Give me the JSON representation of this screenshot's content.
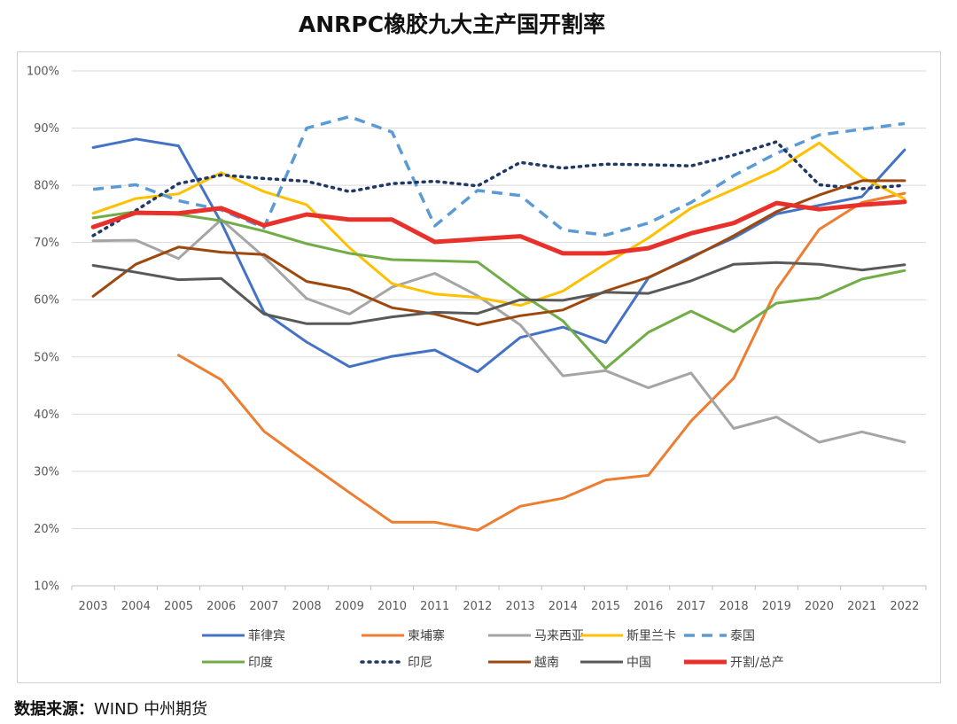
{
  "chart_data": {
    "type": "line",
    "title": "ANRPC橡胶九大主产国开割率",
    "xlabel": "",
    "ylabel": "",
    "x": [
      "2003",
      "2004",
      "2005",
      "2006",
      "2007",
      "2008",
      "2009",
      "2010",
      "2011",
      "2012",
      "2013",
      "2014",
      "2015",
      "2016",
      "2017",
      "2018",
      "2019",
      "2020",
      "2021",
      "2022"
    ],
    "ylim": [
      10,
      100
    ],
    "yticks": [
      "10%",
      "20%",
      "30%",
      "40%",
      "50%",
      "60%",
      "70%",
      "80%",
      "90%",
      "100%"
    ],
    "ytick_values": [
      10,
      20,
      30,
      40,
      50,
      60,
      70,
      80,
      90,
      100
    ],
    "grid": "horizontal",
    "legend_placement": "bottom",
    "series": [
      {
        "name": "菲律宾",
        "color": "#4472C4",
        "dash": "solid",
        "width": 3,
        "values": [
          86.6,
          88.1,
          86.9,
          73.5,
          57.8,
          52.6,
          48.3,
          50.1,
          51.2,
          47.4,
          53.4,
          55.2,
          52.5,
          63.8,
          67.5,
          70.8,
          75.0,
          76.5,
          78.0,
          86.2
        ]
      },
      {
        "name": "柬埔寨",
        "color": "#ED7D31",
        "dash": "solid",
        "width": 3,
        "values": [
          null,
          null,
          50.3,
          46.0,
          37.0,
          31.6,
          26.3,
          21.1,
          21.1,
          19.7,
          23.9,
          25.3,
          28.5,
          29.3,
          38.8,
          46.3,
          61.8,
          72.3,
          77.0,
          78.6
        ]
      },
      {
        "name": "马来西亚",
        "color": "#A5A5A5",
        "dash": "solid",
        "width": 3,
        "values": [
          70.3,
          70.4,
          67.2,
          74.0,
          67.5,
          60.2,
          57.5,
          62.2,
          64.6,
          60.7,
          55.6,
          46.7,
          47.6,
          44.6,
          47.2,
          37.5,
          39.5,
          35.1,
          36.9,
          35.1
        ]
      },
      {
        "name": "斯里兰卡",
        "color": "#FFC000",
        "dash": "solid",
        "width": 3,
        "values": [
          75.1,
          77.7,
          78.5,
          82.2,
          78.9,
          76.6,
          69.1,
          62.8,
          61.0,
          60.4,
          59.0,
          61.5,
          66.3,
          70.8,
          76.0,
          79.3,
          82.7,
          87.4,
          81.4,
          77.6
        ]
      },
      {
        "name": "泰国",
        "color": "#5B9BD5",
        "dash": "12,8",
        "width": 3.5,
        "values": [
          79.3,
          80.1,
          77.3,
          75.7,
          72.6,
          90.0,
          92.0,
          89.3,
          72.9,
          79.1,
          78.2,
          72.2,
          71.3,
          73.4,
          77.0,
          81.7,
          85.6,
          88.8,
          89.8,
          90.8
        ]
      },
      {
        "name": "印度",
        "color": "#70AD47",
        "dash": "solid",
        "width": 3,
        "values": [
          74.3,
          75.4,
          74.9,
          73.8,
          72.0,
          69.8,
          68.1,
          67.0,
          66.8,
          66.6,
          61.1,
          56.3,
          48.0,
          54.3,
          58.0,
          54.4,
          59.4,
          60.3,
          63.6,
          65.1
        ]
      },
      {
        "name": "印尼",
        "color": "#203864",
        "dash": "2,6",
        "width": 3.5,
        "values": [
          71.2,
          75.6,
          80.3,
          81.8,
          81.2,
          80.7,
          78.9,
          80.3,
          80.7,
          79.9,
          84.0,
          83.0,
          83.7,
          83.6,
          83.4,
          85.3,
          87.6,
          80.1,
          79.4,
          80.0
        ]
      },
      {
        "name": "越南",
        "color": "#9E480E",
        "dash": "solid",
        "width": 3,
        "values": [
          60.6,
          66.2,
          69.2,
          68.3,
          67.9,
          63.2,
          61.8,
          58.6,
          57.5,
          55.6,
          57.2,
          58.2,
          61.5,
          63.9,
          67.3,
          71.2,
          75.4,
          78.3,
          80.8,
          80.8
        ]
      },
      {
        "name": "中国",
        "color": "#595959",
        "dash": "solid",
        "width": 3,
        "values": [
          66.0,
          64.8,
          63.5,
          63.7,
          57.5,
          55.8,
          55.8,
          57.0,
          57.8,
          57.6,
          60.0,
          59.9,
          61.3,
          61.1,
          63.3,
          66.2,
          66.5,
          66.2,
          65.2,
          66.1
        ]
      },
      {
        "name": "开割/总产",
        "color": "#E8312A",
        "dash": "solid",
        "width": 5,
        "values": [
          72.7,
          75.2,
          75.1,
          76.0,
          73.0,
          74.9,
          74.0,
          74.0,
          70.1,
          70.6,
          71.1,
          68.1,
          68.1,
          69.0,
          71.6,
          73.4,
          76.9,
          75.8,
          76.6,
          77.1
        ]
      }
    ]
  },
  "source": {
    "label": "数据来源：",
    "text": "WIND  中州期货"
  }
}
